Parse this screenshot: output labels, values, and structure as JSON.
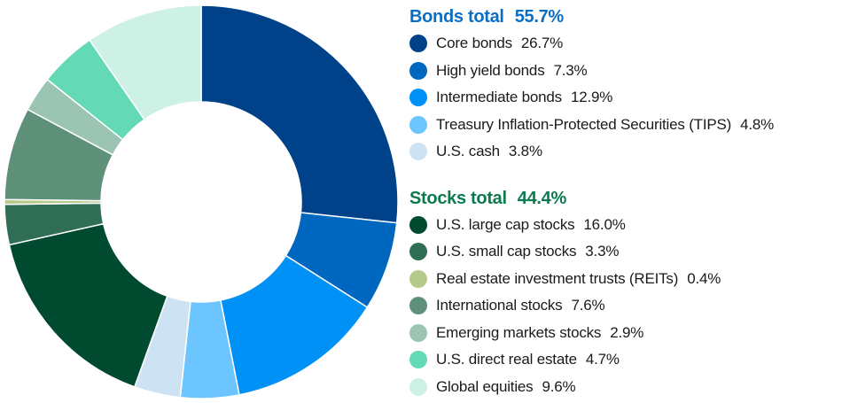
{
  "chart_data": {
    "type": "pie",
    "donut": true,
    "start": "top, clockwise",
    "legend_placement": "right",
    "groups": [
      {
        "title": "Bonds total",
        "total_label": "55.7%",
        "color": "#0a6fc4",
        "items": [
          {
            "label": "Core bonds",
            "value": 26.7,
            "value_label": "26.7%",
            "color": "#00428a"
          },
          {
            "label": "High yield bonds",
            "value": 7.3,
            "value_label": "7.3%",
            "color": "#0067c0"
          },
          {
            "label": "Intermediate bonds",
            "value": 12.9,
            "value_label": "12.9%",
            "color": "#0091f7"
          },
          {
            "label": "Treasury Inflation-Protected Securities (TIPS)",
            "value": 4.8,
            "value_label": "4.8%",
            "color": "#6cc5ff"
          },
          {
            "label": "U.S. cash",
            "value": 3.8,
            "value_label": "3.8%",
            "color": "#cde3f4"
          }
        ]
      },
      {
        "title": "Stocks total",
        "total_label": "44.4%",
        "color": "#0b7a4f",
        "items": [
          {
            "label": "U.S. large cap stocks",
            "value": 16.0,
            "value_label": "16.0%",
            "color": "#004b30"
          },
          {
            "label": "U.S. small cap stocks",
            "value": 3.3,
            "value_label": "3.3%",
            "color": "#2f6e55"
          },
          {
            "label": "Real estate investment trusts (REITs)",
            "value": 0.4,
            "value_label": "0.4%",
            "color": "#b5c98a"
          },
          {
            "label": "International stocks",
            "value": 7.6,
            "value_label": "7.6%",
            "color": "#5f917a"
          },
          {
            "label": "Emerging markets stocks",
            "value": 2.9,
            "value_label": "2.9%",
            "color": "#9bc4b3"
          },
          {
            "label": "U.S. direct real estate",
            "value": 4.7,
            "value_label": "4.7%",
            "color": "#63d9b5"
          },
          {
            "label": "Global equities",
            "value": 9.6,
            "value_label": "9.6%",
            "color": "#cdf1e5"
          }
        ]
      }
    ]
  }
}
